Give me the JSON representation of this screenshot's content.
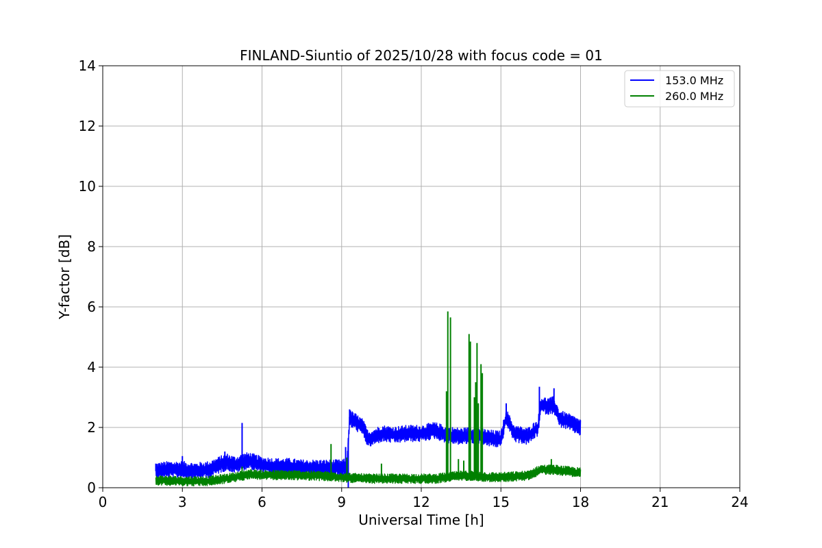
{
  "chart_data": {
    "type": "line",
    "title": "FINLAND-Siuntio of 2025/10/28 with focus code = 01",
    "xlabel": "Universal Time [h]",
    "ylabel": "Y-factor [dB]",
    "xlim": [
      0,
      24
    ],
    "ylim": [
      0,
      14
    ],
    "xticks": [
      "0",
      "3",
      "6",
      "9",
      "12",
      "15",
      "18",
      "21",
      "24"
    ],
    "yticks": [
      "0",
      "2",
      "4",
      "6",
      "8",
      "10",
      "12",
      "14"
    ],
    "grid": true,
    "legend_position": "top-right",
    "series": [
      {
        "name": "153.0 MHz",
        "color": "#0000ff",
        "noise": 0.28,
        "x": [
          2.0,
          2.5,
          3.0,
          3.5,
          4.0,
          4.5,
          4.7,
          5.0,
          5.25,
          5.5,
          6.0,
          6.5,
          7.0,
          7.5,
          8.0,
          8.5,
          9.0,
          9.2,
          9.3,
          9.5,
          9.8,
          10.0,
          10.5,
          11.0,
          11.5,
          12.0,
          12.5,
          13.0,
          13.5,
          14.0,
          14.5,
          15.0,
          15.2,
          15.5,
          16.0,
          16.4,
          16.5,
          16.8,
          17.0,
          17.2,
          17.5,
          18.0
        ],
        "y": [
          0.55,
          0.6,
          0.6,
          0.55,
          0.6,
          0.8,
          0.85,
          0.75,
          0.85,
          0.9,
          0.75,
          0.7,
          0.7,
          0.65,
          0.65,
          0.65,
          0.65,
          0.7,
          2.3,
          2.2,
          2.0,
          1.6,
          1.8,
          1.75,
          1.8,
          1.8,
          1.9,
          1.75,
          1.7,
          1.75,
          1.65,
          1.6,
          2.35,
          1.8,
          1.7,
          2.0,
          2.75,
          2.7,
          2.75,
          2.3,
          2.2,
          2.0
        ],
        "spikes": [
          [
            2.0,
            0.8
          ],
          [
            3.0,
            1.05
          ],
          [
            4.6,
            1.2
          ],
          [
            5.25,
            2.15
          ],
          [
            9.15,
            1.35
          ],
          [
            9.25,
            0.0
          ],
          [
            9.3,
            2.6
          ],
          [
            15.2,
            2.8
          ],
          [
            16.45,
            3.35
          ],
          [
            17.0,
            3.3
          ]
        ]
      },
      {
        "name": "260.0 MHz",
        "color": "#008000",
        "noise": 0.16,
        "x": [
          2.0,
          3.0,
          4.0,
          5.0,
          5.5,
          6.0,
          7.0,
          8.0,
          9.0,
          9.5,
          10.0,
          11.0,
          12.0,
          12.5,
          13.0,
          13.5,
          14.0,
          14.5,
          15.0,
          16.0,
          16.5,
          17.0,
          17.5,
          18.0
        ],
        "y": [
          0.25,
          0.22,
          0.22,
          0.35,
          0.45,
          0.42,
          0.42,
          0.4,
          0.35,
          0.32,
          0.3,
          0.3,
          0.3,
          0.3,
          0.35,
          0.4,
          0.4,
          0.35,
          0.35,
          0.4,
          0.6,
          0.6,
          0.55,
          0.5
        ],
        "spikes": [
          [
            5.25,
            0.7
          ],
          [
            8.6,
            1.45
          ],
          [
            9.2,
            1.0
          ],
          [
            10.5,
            0.8
          ],
          [
            12.95,
            3.2
          ],
          [
            13.0,
            5.85
          ],
          [
            13.1,
            5.65
          ],
          [
            13.4,
            0.95
          ],
          [
            13.6,
            0.9
          ],
          [
            13.8,
            5.1
          ],
          [
            13.85,
            4.85
          ],
          [
            14.0,
            3.0
          ],
          [
            14.05,
            3.5
          ],
          [
            14.1,
            4.8
          ],
          [
            14.15,
            2.8
          ],
          [
            14.25,
            4.1
          ],
          [
            14.3,
            3.8
          ],
          [
            16.9,
            0.95
          ]
        ]
      }
    ]
  }
}
